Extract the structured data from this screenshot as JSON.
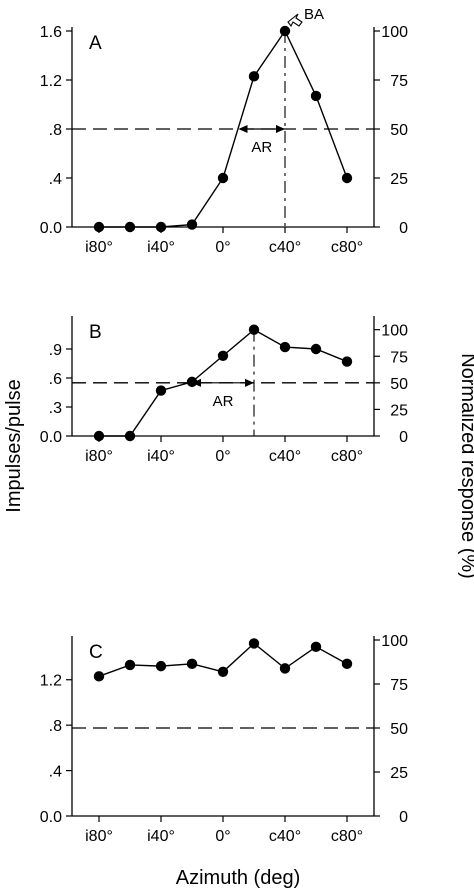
{
  "chart_data": [
    {
      "type": "line",
      "panel": "A",
      "xlabel": "",
      "ylabel_left": "",
      "ylabel_right": "",
      "x": [
        -80,
        -60,
        -40,
        -20,
        0,
        20,
        40,
        60,
        80
      ],
      "values": [
        0,
        0,
        0,
        0.02,
        0.4,
        1.23,
        1.6,
        1.07,
        0.4
      ],
      "xlim": [
        -80,
        80
      ],
      "ylim": [
        0,
        1.6
      ],
      "right_ylim": [
        0,
        100
      ],
      "xticks": [
        "i80°",
        "i40°",
        "0°",
        "c40°",
        "c80°"
      ],
      "yticks": [
        "0.0",
        ".4",
        ".8",
        "1.2",
        "1.6"
      ],
      "right_yticks": [
        "0",
        "25",
        "50",
        "75",
        "100"
      ],
      "threshold_value": 0.8,
      "best_azimuth": 40,
      "ar_range": [
        10,
        40
      ],
      "ar_label": "AR",
      "ba_label": "BA",
      "grid": false
    },
    {
      "type": "line",
      "panel": "B",
      "xlabel": "",
      "ylabel_left": "Impulses/pulse",
      "ylabel_right": "Normalized response (%)",
      "x": [
        -80,
        -60,
        -40,
        -20,
        0,
        20,
        40,
        60,
        80
      ],
      "values": [
        0,
        0,
        0.47,
        0.56,
        0.83,
        1.1,
        0.92,
        0.9,
        0.77
      ],
      "xlim": [
        -80,
        80
      ],
      "ylim": [
        0,
        1.2
      ],
      "right_ylim": [
        0,
        109.1
      ],
      "xticks": [
        "i80°",
        "i40°",
        "0°",
        "c40°",
        "c80°"
      ],
      "yticks": [
        "0.0",
        ".3",
        ".6",
        ".9"
      ],
      "right_yticks": [
        "0",
        "25",
        "50",
        "75",
        "100"
      ],
      "threshold_value": 0.55,
      "best_azimuth": 20,
      "ar_range": [
        -20,
        20
      ],
      "ar_label": "AR",
      "grid": false
    },
    {
      "type": "line",
      "panel": "C",
      "xlabel": "Azimuth (deg)",
      "ylabel_left": "",
      "ylabel_right": "",
      "x": [
        -80,
        -60,
        -40,
        -20,
        0,
        20,
        40,
        60,
        80
      ],
      "values": [
        1.23,
        1.33,
        1.32,
        1.34,
        1.27,
        1.52,
        1.3,
        1.49,
        1.34
      ],
      "xlim": [
        -80,
        80
      ],
      "ylim": [
        0,
        1.55
      ],
      "right_ylim": [
        0,
        100
      ],
      "xticks": [
        "i80°",
        "i40°",
        "0°",
        "c40°",
        "c80°"
      ],
      "yticks": [
        "0.0",
        ".4",
        ".8",
        "1.2"
      ],
      "right_yticks": [
        "0",
        "25",
        "50",
        "75",
        "100"
      ],
      "threshold_value": 0.775,
      "grid": false
    }
  ]
}
